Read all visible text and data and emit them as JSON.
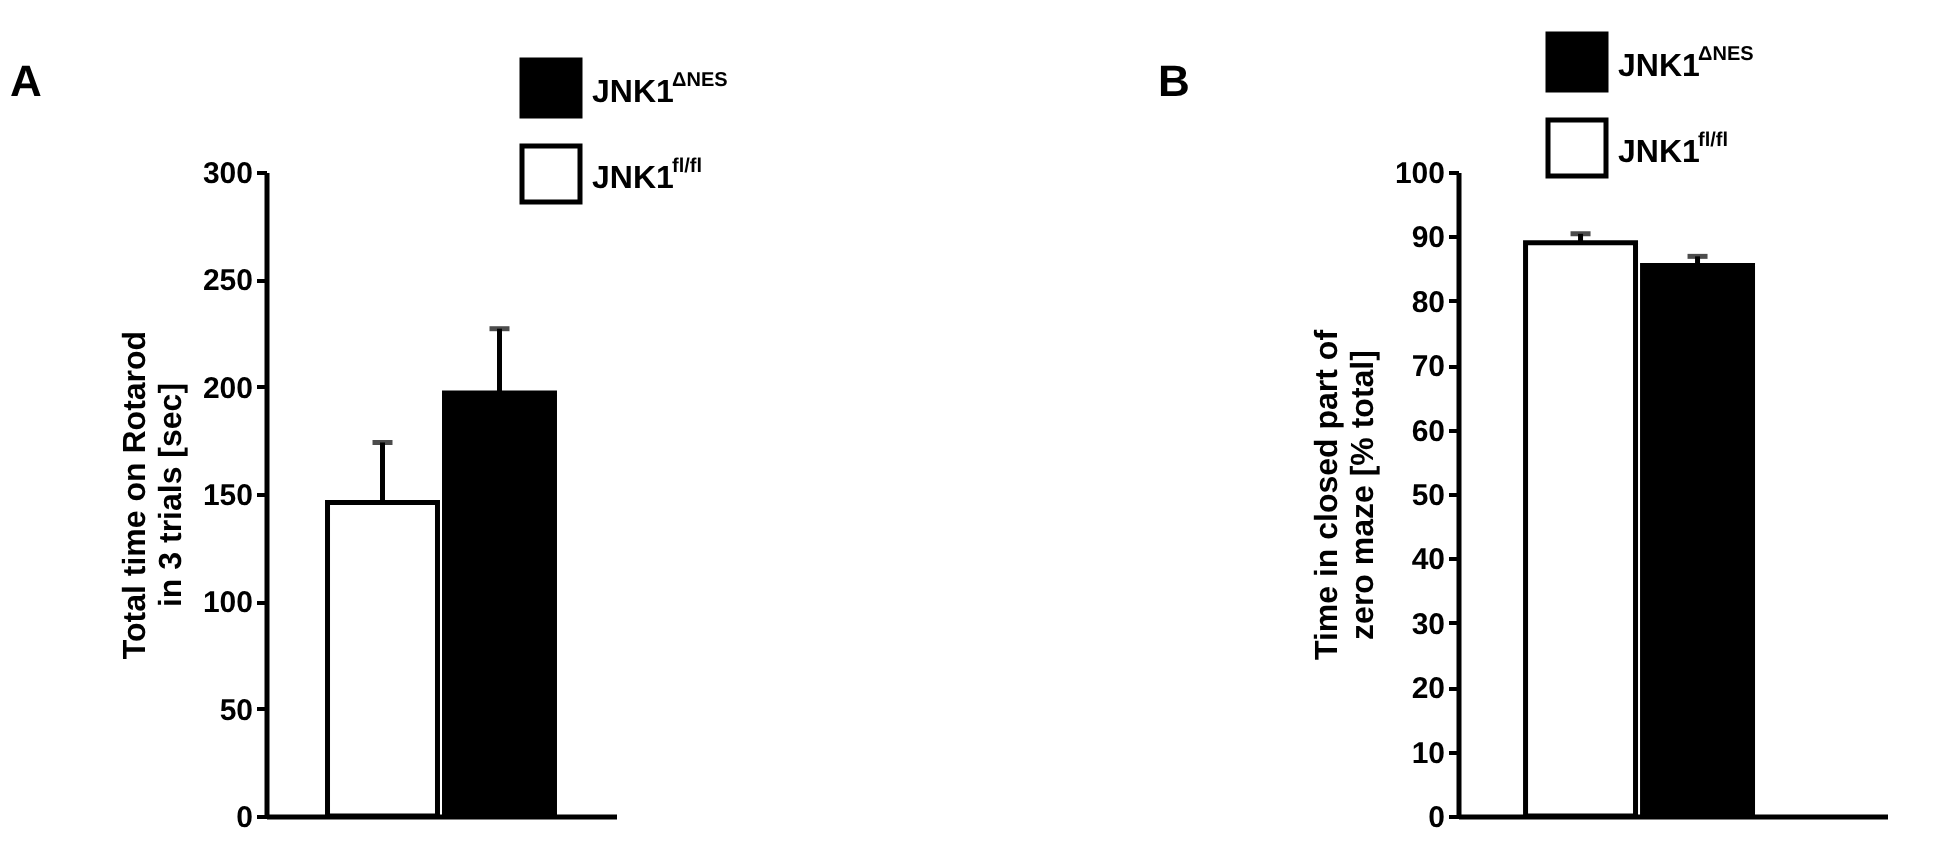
{
  "chart_data": [
    {
      "type": "bar",
      "title": "A",
      "ylabel": "Total time on Rotarod\nin 3 trials [sec]",
      "categories": [
        null
      ],
      "ylim": [
        0,
        300
      ],
      "yticks": [
        0,
        50,
        100,
        150,
        200,
        250,
        300
      ],
      "tick_labels": "y",
      "legend": "top right",
      "series": [
        {
          "name": "JNK1$^{fl/fl}$",
          "color": "#ffffff",
          "values": [
            146
          ],
          "errors": [
            [
              146,
              174
            ]
          ]
        },
        {
          "name": "JNK1$^{ΔNES}$",
          "color": "#000000",
          "values": [
            197
          ],
          "errors": [
            [
              197,
              227
            ]
          ]
        }
      ]
    },
    {
      "type": "bar",
      "title": "B",
      "ylabel": "Time in closed part of\nzero maze [% total]",
      "categories": [
        null
      ],
      "ylim": [
        0,
        100
      ],
      "yticks": [
        0,
        10,
        20,
        30,
        40,
        50,
        60,
        70,
        80,
        90,
        100
      ],
      "tick_labels": "y",
      "legend": "top",
      "series": [
        {
          "name": "JNK1$^{fl/fl}$",
          "color": "#ffffff",
          "values": [
            89
          ],
          "errors": [
            [
              89,
              90.4
            ]
          ]
        },
        {
          "name": "JNK1$^{ΔNES}$",
          "color": "#000000",
          "values": [
            85.5
          ],
          "errors": [
            [
              85.5,
              86.9
            ]
          ]
        }
      ]
    }
  ]
}
